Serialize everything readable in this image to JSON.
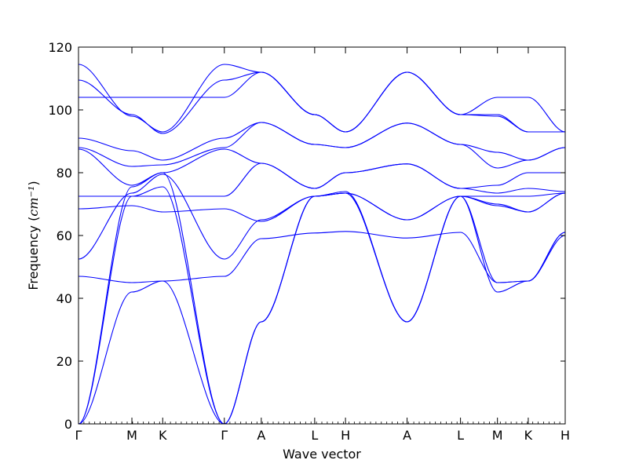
{
  "chart_data": {
    "type": "line",
    "title": "",
    "xlabel": "Wave vector",
    "ylabel": "Frequency",
    "ylabel_unit": "cm⁻¹",
    "ylim": [
      0,
      120
    ],
    "yticks": [
      0,
      20,
      40,
      60,
      80,
      100,
      120
    ],
    "grid": false,
    "line_color": "#0000ff",
    "kpoints": [
      {
        "label": "Γ",
        "pos": 0.0
      },
      {
        "label": "M",
        "pos": 1.0
      },
      {
        "label": "K",
        "pos": 1.577
      },
      {
        "label": "Γ",
        "pos": 2.731
      },
      {
        "label": "A",
        "pos": 3.423
      },
      {
        "label": "L",
        "pos": 4.423
      },
      {
        "label": "H",
        "pos": 5.0
      },
      {
        "label": "A",
        "pos": 6.154
      },
      {
        "label": "L",
        "pos": 7.154
      },
      {
        "label": "M",
        "pos": 7.846
      },
      {
        "label": "K",
        "pos": 8.423
      },
      {
        "label": "H",
        "pos": 9.115
      }
    ],
    "xlim": [
      0,
      9.115
    ],
    "series": [
      {
        "x": [
          0,
          1.0,
          1.577,
          2.731,
          3.423,
          4.423,
          5.0,
          6.154,
          7.154,
          7.846,
          8.423,
          9.115
        ],
        "values": [
          0,
          42,
          45.5,
          0,
          32.5,
          72.5,
          73.5,
          32.5,
          72.5,
          42,
          45.5,
          61
        ]
      },
      {
        "x": [
          0,
          1.0,
          1.577,
          2.731,
          3.423,
          4.423,
          5.0,
          6.154,
          7.154,
          7.846,
          8.423,
          9.115
        ],
        "values": [
          0,
          72.5,
          75.5,
          0,
          32.5,
          72.5,
          73.5,
          32.5,
          72.5,
          45,
          45.5,
          61
        ]
      },
      {
        "x": [
          0,
          1.0,
          1.577,
          2.731,
          3.423,
          4.423,
          5.0,
          6.154,
          7.154,
          7.846,
          8.423,
          9.115
        ],
        "values": [
          0,
          75.5,
          80,
          0,
          32.5,
          72.5,
          74,
          32.5,
          72.5,
          69.5,
          67.5,
          73.5
        ]
      },
      {
        "x": [
          0,
          1.0,
          1.577,
          2.731,
          3.423,
          4.423,
          5.0,
          6.154,
          7.154,
          7.846,
          8.423,
          9.115
        ],
        "values": [
          47,
          45,
          45.5,
          47,
          59,
          60.8,
          61.3,
          59.2,
          61,
          45,
          45.5,
          60
        ]
      },
      {
        "x": [
          0,
          1.0,
          1.577,
          2.731,
          3.423,
          4.423,
          5.0,
          6.154,
          7.154,
          7.846,
          8.423,
          9.115
        ],
        "values": [
          52.5,
          73.5,
          79.5,
          52.5,
          65,
          72.5,
          73.5,
          65,
          72.5,
          70,
          67.5,
          73.5
        ]
      },
      {
        "x": [
          0,
          1.0,
          1.577,
          2.731,
          3.423,
          4.423,
          5.0,
          6.154,
          7.154,
          7.846,
          8.423,
          9.115
        ],
        "values": [
          68.5,
          69.5,
          67.5,
          68.5,
          64.5,
          72.5,
          73.5,
          65,
          72.5,
          72.5,
          72.5,
          73.5
        ]
      },
      {
        "x": [
          0,
          1.0,
          1.577,
          2.731,
          3.423,
          4.423,
          5.0,
          6.154,
          7.154,
          7.846,
          8.423,
          9.115
        ],
        "values": [
          72.5,
          72.5,
          72.5,
          72.5,
          83,
          75,
          80,
          82.8,
          75,
          73.5,
          75,
          74
        ]
      },
      {
        "x": [
          0,
          1.0,
          1.577,
          2.731,
          3.423,
          4.423,
          5.0,
          6.154,
          7.154,
          7.846,
          8.423,
          9.115
        ],
        "values": [
          87.5,
          76,
          80,
          87.5,
          83,
          75,
          80,
          82.8,
          75,
          76,
          80,
          80
        ]
      },
      {
        "x": [
          0,
          1.0,
          1.577,
          2.731,
          3.423,
          4.423,
          5.0,
          6.154,
          7.154,
          7.846,
          8.423,
          9.115
        ],
        "values": [
          88,
          82,
          82.5,
          88,
          96,
          89,
          88,
          95.8,
          89,
          81.5,
          84,
          88
        ]
      },
      {
        "x": [
          0,
          1.0,
          1.577,
          2.731,
          3.423,
          4.423,
          5.0,
          6.154,
          7.154,
          7.846,
          8.423,
          9.115
        ],
        "values": [
          91,
          87,
          84,
          91,
          96,
          89,
          88,
          95.8,
          89,
          86.5,
          84,
          88
        ]
      },
      {
        "x": [
          0,
          1.0,
          1.577,
          2.731,
          3.423,
          4.423,
          5.0,
          6.154,
          7.154,
          7.846,
          8.423,
          9.115
        ],
        "values": [
          104,
          104,
          104,
          104,
          112,
          98.5,
          93,
          112,
          98.5,
          104,
          104,
          93
        ]
      },
      {
        "x": [
          0,
          1.0,
          1.577,
          2.731,
          3.423,
          4.423,
          5.0,
          6.154,
          7.154,
          7.846,
          8.423,
          9.115
        ],
        "values": [
          109.5,
          98.5,
          92.5,
          109.5,
          112,
          98.5,
          93,
          112,
          98.5,
          98.5,
          93,
          93
        ]
      },
      {
        "x": [
          0,
          1.0,
          1.577,
          2.731,
          3.423,
          4.423,
          5.0,
          6.154,
          7.154,
          7.846,
          8.423,
          9.115
        ],
        "values": [
          114.5,
          98,
          93,
          114.5,
          112,
          98.5,
          93,
          112,
          98.5,
          98,
          93,
          93
        ]
      }
    ]
  }
}
